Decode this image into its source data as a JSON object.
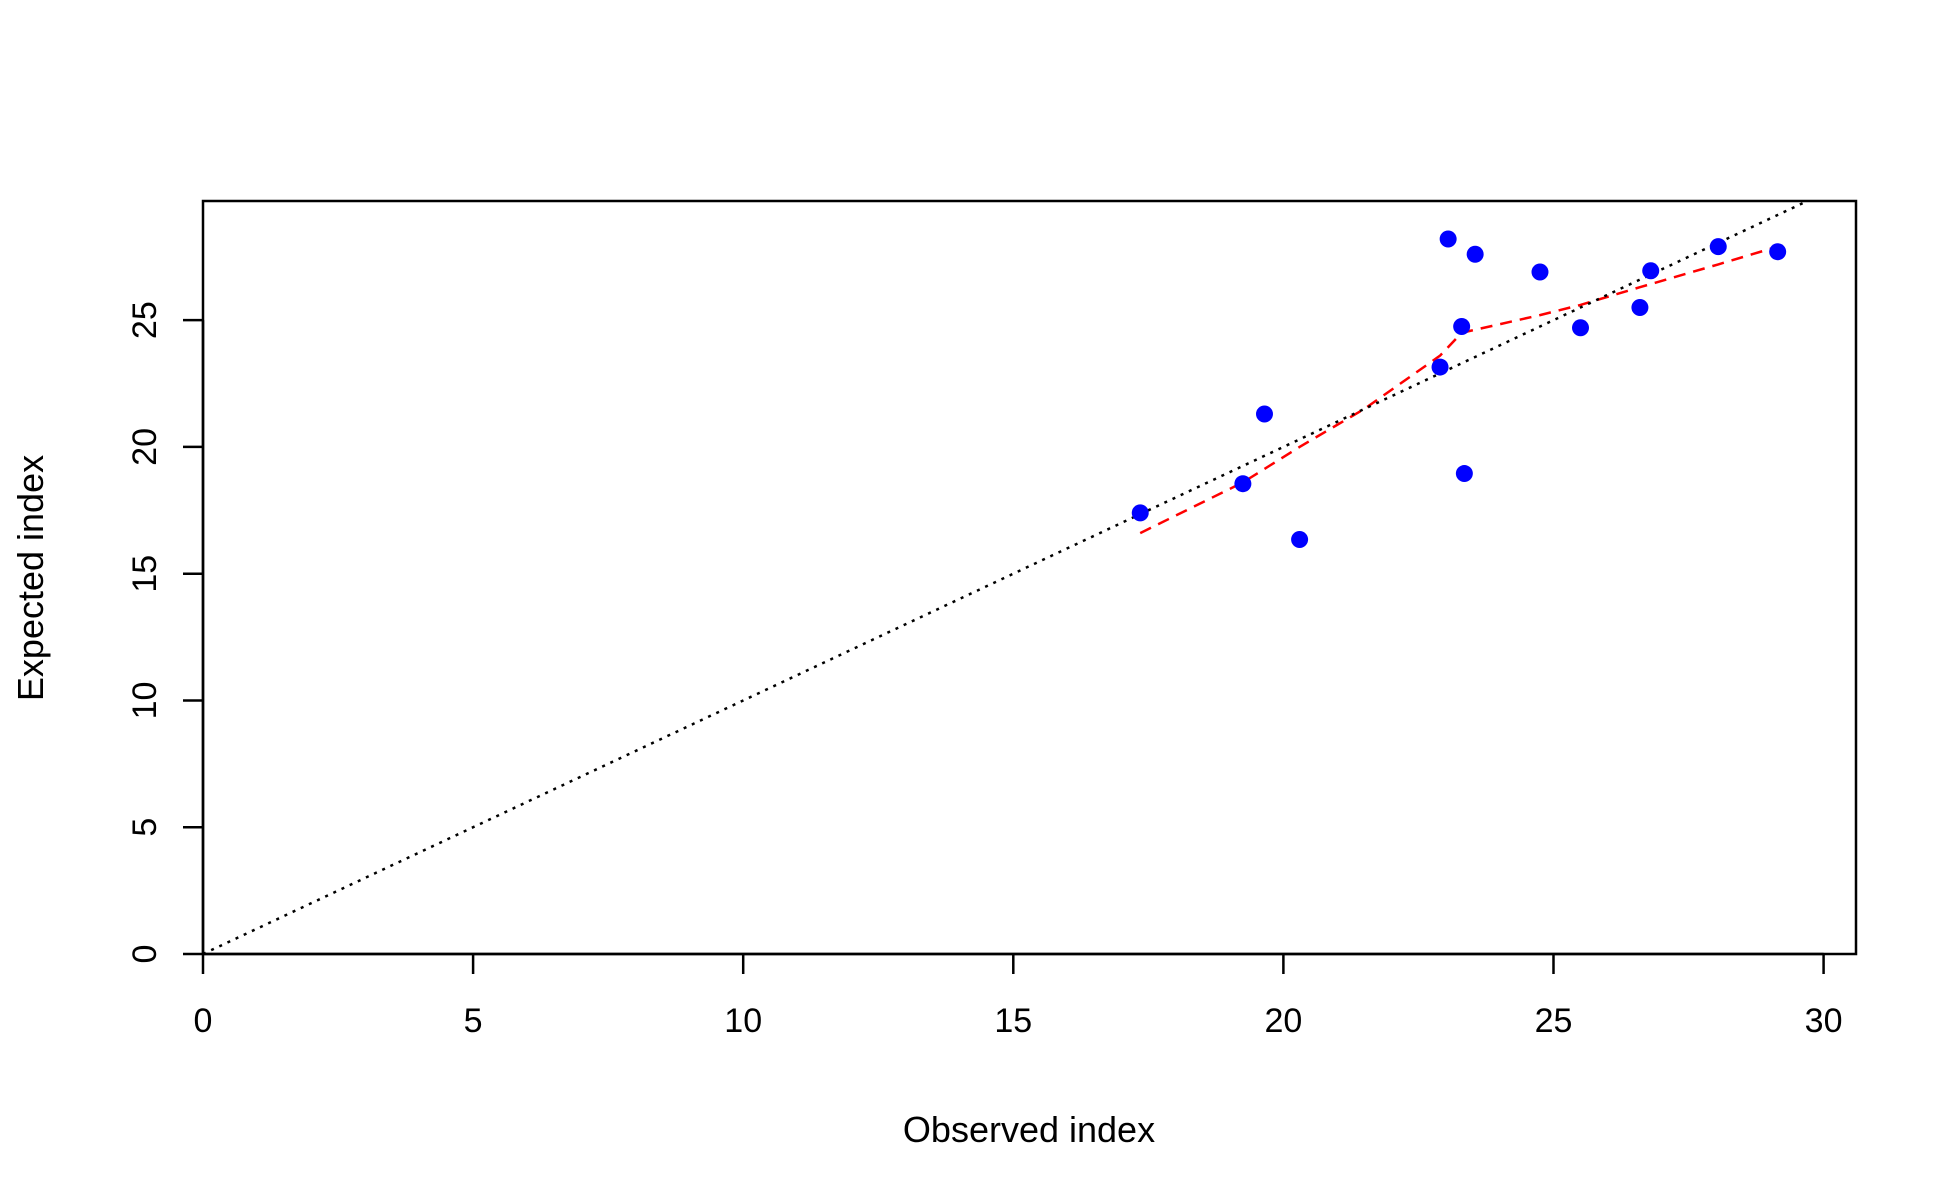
{
  "chart_data": {
    "type": "scatter",
    "title": "",
    "xlabel": "Observed index",
    "ylabel": "Expected index",
    "xlim": [
      0,
      30.6
    ],
    "ylim": [
      0,
      29.7
    ],
    "xticks": [
      0,
      5,
      10,
      15,
      20,
      25,
      30
    ],
    "yticks": [
      0,
      5,
      10,
      15,
      20,
      25
    ],
    "grid": false,
    "legend": "none",
    "series": [
      {
        "type": "scatter",
        "color": "#0000ff",
        "points": [
          {
            "x": 17.35,
            "y": 17.4
          },
          {
            "x": 19.25,
            "y": 18.55
          },
          {
            "x": 19.65,
            "y": 21.3
          },
          {
            "x": 20.3,
            "y": 16.35
          },
          {
            "x": 22.9,
            "y": 23.15
          },
          {
            "x": 23.05,
            "y": 28.2
          },
          {
            "x": 23.3,
            "y": 24.75
          },
          {
            "x": 23.35,
            "y": 18.95
          },
          {
            "x": 23.55,
            "y": 27.6
          },
          {
            "x": 24.75,
            "y": 26.9
          },
          {
            "x": 25.5,
            "y": 24.7
          },
          {
            "x": 26.6,
            "y": 25.5
          },
          {
            "x": 26.8,
            "y": 26.95
          },
          {
            "x": 28.05,
            "y": 27.9
          },
          {
            "x": 29.15,
            "y": 27.7
          }
        ]
      },
      {
        "type": "line",
        "style": "dashed",
        "color": "#ff0000",
        "points": [
          {
            "x": 17.35,
            "y": 16.6
          },
          {
            "x": 19.25,
            "y": 18.6
          },
          {
            "x": 20.3,
            "y": 20.0
          },
          {
            "x": 21.5,
            "y": 21.5
          },
          {
            "x": 22.9,
            "y": 23.6
          },
          {
            "x": 23.3,
            "y": 24.5
          },
          {
            "x": 24.75,
            "y": 25.2
          },
          {
            "x": 25.5,
            "y": 25.6
          },
          {
            "x": 26.6,
            "y": 26.3
          },
          {
            "x": 28.05,
            "y": 27.2
          },
          {
            "x": 29.15,
            "y": 27.9
          }
        ]
      },
      {
        "type": "line",
        "style": "dotted",
        "color": "#000000",
        "reference": "identity",
        "points": [
          {
            "x": 0,
            "y": 0
          },
          {
            "x": 30.6,
            "y": 30.6
          }
        ]
      }
    ]
  }
}
